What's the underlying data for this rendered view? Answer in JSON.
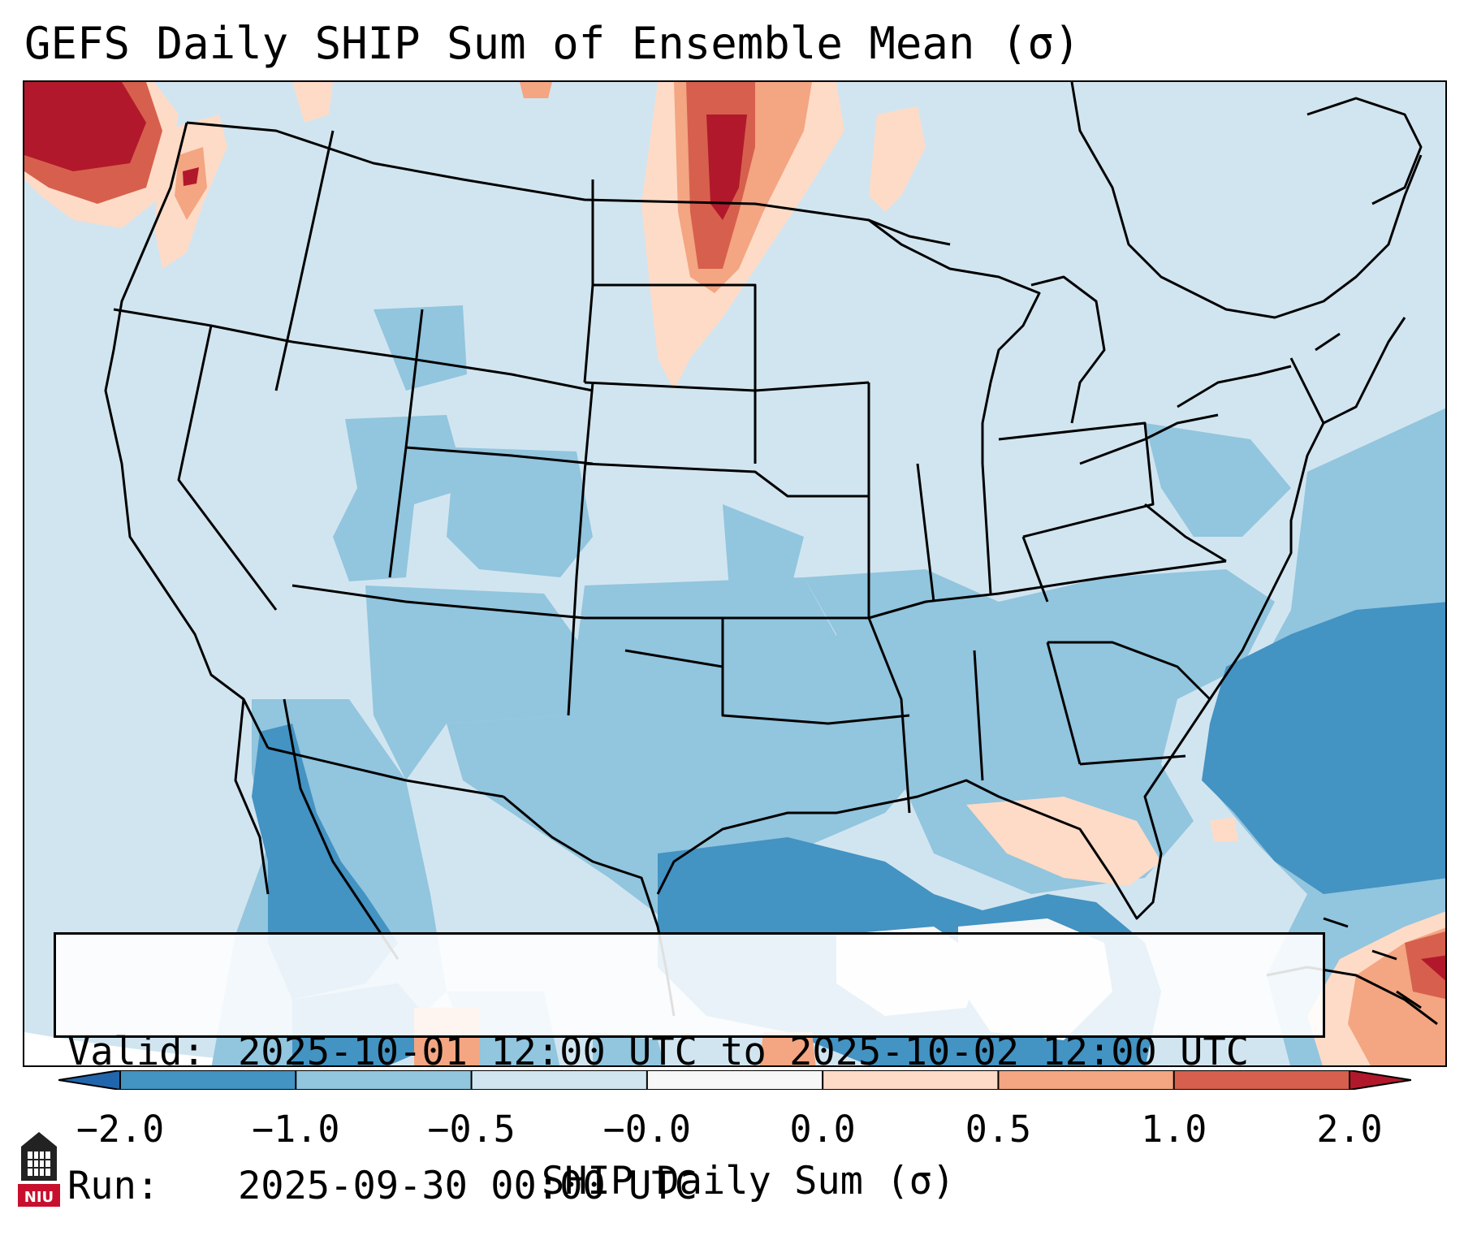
{
  "title": "GEFS Daily SHIP Sum of Ensemble Mean (σ)",
  "info": {
    "valid_label": "Valid:",
    "valid_value": "2025-10-01 12:00 UTC to 2025-10-02 12:00 UTC",
    "run_label": "Run:",
    "run_value": "2025-09-30 00:00 UTC"
  },
  "colorbar": {
    "label": "SHIP Daily Sum (σ)",
    "ticks": [
      "−2.0",
      "−1.0",
      "−0.5",
      "−0.0",
      "0.0",
      "0.5",
      "1.0",
      "2.0"
    ],
    "colors": [
      "#4393c3",
      "#92c5de",
      "#d1e5f0",
      "#f7f7f7",
      "#fddbc7",
      "#f4a582",
      "#d6604d"
    ],
    "under_color": "#2166ac",
    "over_color": "#b2182b"
  },
  "logo": {
    "text": "NIU",
    "icon": "niu-logo-icon"
  },
  "colors": {
    "light_blue": "#d1e5f0",
    "mid_blue": "#92c5de",
    "dark_blue": "#4393c3",
    "white": "#f7f7f7",
    "light_red": "#fddbc7",
    "mid_red": "#f4a582",
    "red": "#d6604d",
    "dark_red": "#b2182b"
  }
}
